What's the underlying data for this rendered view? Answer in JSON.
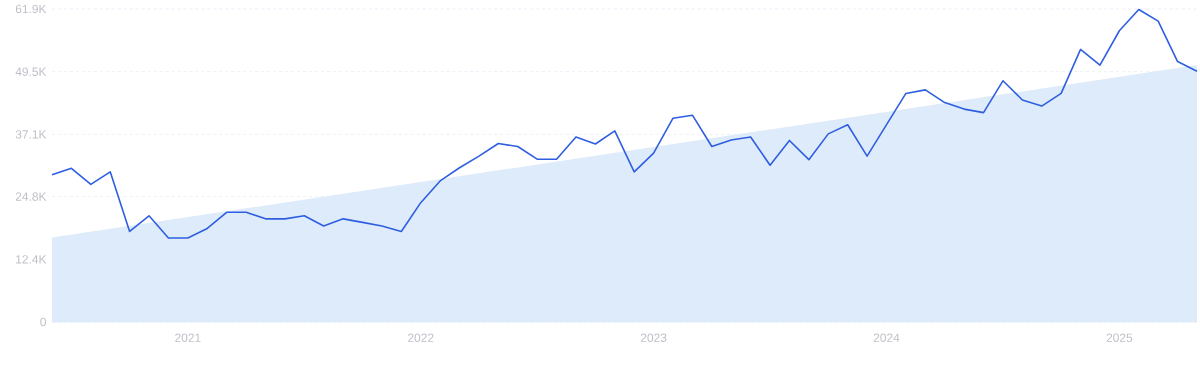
{
  "chart_data": {
    "type": "line",
    "x": [
      "2020-06",
      "2020-07",
      "2020-08",
      "2020-09",
      "2020-10",
      "2020-11",
      "2020-12",
      "2021-01",
      "2021-02",
      "2021-03",
      "2021-04",
      "2021-05",
      "2021-06",
      "2021-07",
      "2021-08",
      "2021-09",
      "2021-10",
      "2021-11",
      "2021-12",
      "2022-01",
      "2022-02",
      "2022-03",
      "2022-04",
      "2022-05",
      "2022-06",
      "2022-07",
      "2022-08",
      "2022-09",
      "2022-10",
      "2022-11",
      "2022-12",
      "2023-01",
      "2023-02",
      "2023-03",
      "2023-04",
      "2023-05",
      "2023-06",
      "2023-07",
      "2023-08",
      "2023-09",
      "2023-10",
      "2023-11",
      "2023-12",
      "2024-01",
      "2024-02",
      "2024-03",
      "2024-04",
      "2024-05",
      "2024-06",
      "2024-07",
      "2024-08",
      "2024-09",
      "2024-10",
      "2024-11",
      "2024-12",
      "2025-01",
      "2025-02",
      "2025-03",
      "2025-04",
      "2025-05"
    ],
    "series": [
      {
        "type": "area",
        "color": "#deebfb",
        "x": [
          "2020-06",
          "2025-05"
        ],
        "values": [
          16700,
          50800
        ]
      },
      {
        "color": "#2f5fe0",
        "values": [
          29100,
          30400,
          27200,
          29700,
          17900,
          21000,
          16600,
          16600,
          18500,
          21700,
          21700,
          20400,
          20400,
          21000,
          19000,
          20400,
          19700,
          19000,
          17900,
          23600,
          27900,
          30500,
          32800,
          35300,
          34700,
          32200,
          32200,
          36600,
          35200,
          37800,
          29700,
          33400,
          40300,
          40900,
          34700,
          36000,
          36600,
          31000,
          35900,
          32100,
          37200,
          39000,
          32800,
          39000,
          45200,
          45900,
          43400,
          42100,
          41400,
          47700,
          43900,
          42700,
          45200,
          53900,
          50800,
          57600,
          61800,
          59500,
          51500,
          49600
        ]
      }
    ],
    "xlim": [
      "2020-06",
      "2025-05"
    ],
    "xticks": [
      {
        "value": "2021-01",
        "label": "2021"
      },
      {
        "value": "2022-01",
        "label": "2022"
      },
      {
        "value": "2023-01",
        "label": "2023"
      },
      {
        "value": "2024-01",
        "label": "2024"
      },
      {
        "value": "2025-01",
        "label": "2025"
      }
    ],
    "ylim": [
      0,
      61900
    ],
    "yticks": [
      {
        "value": 0,
        "label": "0"
      },
      {
        "value": 12400,
        "label": "12.4K"
      },
      {
        "value": 24800,
        "label": "24.8K"
      },
      {
        "value": 37100,
        "label": "37.1K"
      },
      {
        "value": 49500,
        "label": "49.5K"
      },
      {
        "value": 61900,
        "label": "61.9K"
      }
    ],
    "grid": "y"
  }
}
